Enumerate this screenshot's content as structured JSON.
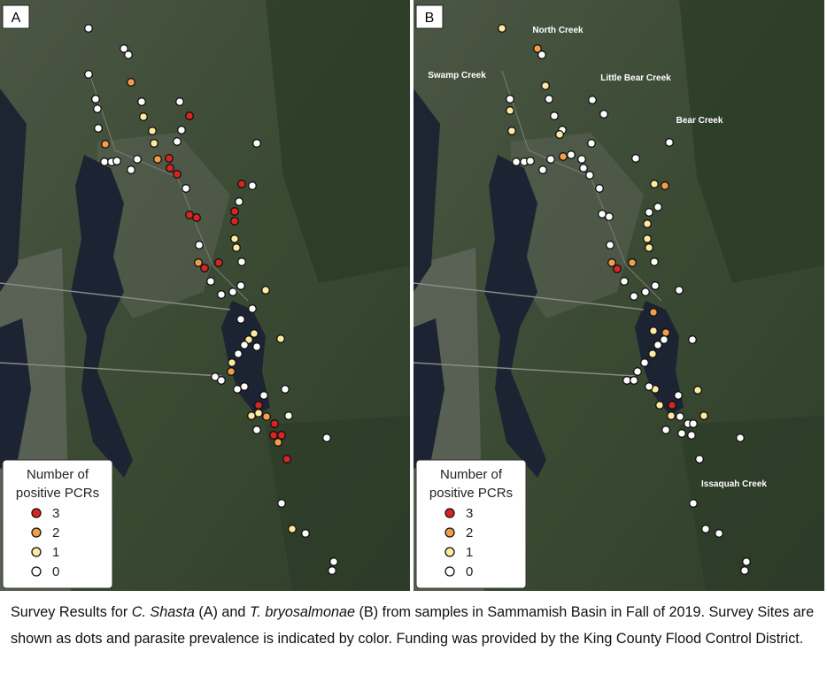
{
  "panels": [
    {
      "label": "A",
      "values": [
        0,
        0,
        0,
        0,
        2,
        0,
        0,
        0,
        0,
        3,
        0,
        1,
        1,
        0,
        0,
        1,
        2,
        0,
        0,
        0,
        0,
        0,
        0,
        2,
        3,
        3,
        3,
        0,
        3,
        0,
        0,
        3,
        3,
        3,
        3,
        0,
        1,
        1,
        2,
        3,
        3,
        0,
        0,
        0,
        0,
        0,
        1,
        0,
        0,
        1,
        1,
        0,
        1,
        0,
        0,
        1,
        2,
        0,
        0,
        0,
        0,
        0,
        0,
        3,
        1,
        1,
        2,
        0,
        0,
        3,
        3,
        3,
        2,
        0,
        3,
        0,
        1,
        0,
        0,
        0
      ]
    },
    {
      "label": "B",
      "values": [
        1,
        2,
        0,
        0,
        1,
        0,
        0,
        1,
        0,
        0,
        1,
        0,
        1,
        0,
        0,
        0,
        0,
        0,
        0,
        0,
        2,
        0,
        0,
        0,
        0,
        0,
        0,
        1,
        2,
        0,
        0,
        0,
        0,
        0,
        1,
        1,
        1,
        2,
        3,
        2,
        0,
        0,
        0,
        0,
        0,
        0,
        2,
        1,
        2,
        0,
        0,
        0,
        1,
        0,
        0,
        0,
        0,
        1,
        0,
        1,
        0,
        1,
        3,
        0,
        1,
        1,
        0,
        0,
        0,
        0,
        0,
        0,
        0,
        0,
        0,
        0,
        0,
        0
      ],
      "annotations": [
        "North Creek",
        "Swamp Creek",
        "Little Bear Creek",
        "Bear Creek",
        "Issaquah Creek"
      ]
    }
  ],
  "legend": {
    "title": [
      "Number of",
      "positive PCRs"
    ],
    "items": [
      {
        "value": 3,
        "color": "#d7261e"
      },
      {
        "value": 2,
        "color": "#f39c4a"
      },
      {
        "value": 1,
        "color": "#fde9a0"
      },
      {
        "value": 0,
        "color": "#ffffff"
      }
    ]
  },
  "caption": [
    "Survey Results for ",
    "C. Shasta",
    " (A) and ",
    "T. bryosalmonae",
    " (B) from samples in Sammamish Basin in Fall of 2019. Survey Sites are shown as dots and parasite prevalence is indicated by color. Funding was provided by the King County Flood Control District."
  ]
}
